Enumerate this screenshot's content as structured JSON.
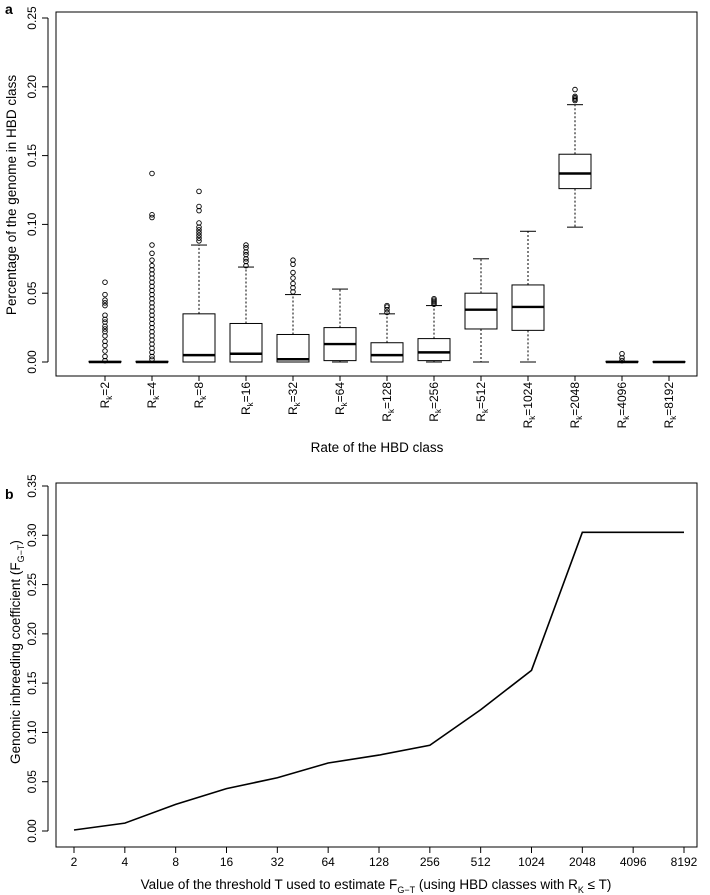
{
  "panels": [
    {
      "letter": "a"
    },
    {
      "letter": "b"
    }
  ],
  "colors": {
    "stroke": "#000000",
    "background": "#ffffff"
  },
  "chart_data": [
    {
      "type": "boxplot",
      "panel": "a",
      "title": "",
      "xlabel": "Rate of the HBD class",
      "ylabel": "Percentage of the genome in HBD class",
      "ylim": [
        0,
        0.25
      ],
      "yticks": [
        "0.00",
        "0.05",
        "0.10",
        "0.15",
        "0.20",
        "0.25"
      ],
      "categories": [
        {
          "sub": "k",
          "rate": "2"
        },
        {
          "sub": "k",
          "rate": "4"
        },
        {
          "sub": "k",
          "rate": "8"
        },
        {
          "sub": "k",
          "rate": "16"
        },
        {
          "sub": "k",
          "rate": "32"
        },
        {
          "sub": "k",
          "rate": "64"
        },
        {
          "sub": "k",
          "rate": "128"
        },
        {
          "sub": "k",
          "rate": "256"
        },
        {
          "sub": "k",
          "rate": "512"
        },
        {
          "sub": "k",
          "rate": "1024"
        },
        {
          "sub": "k",
          "rate": "2048"
        },
        {
          "sub": "k",
          "rate": "4096"
        },
        {
          "sub": "k",
          "rate": "8192"
        }
      ],
      "boxes": [
        {
          "q1": 0,
          "median": 0,
          "q3": 0.0005,
          "whisker_low": 0,
          "whisker_high": 0.0005,
          "outliers": [
            0.058,
            0.049,
            0.045,
            0.043,
            0.041,
            0.034,
            0.031,
            0.029,
            0.026,
            0.024,
            0.022,
            0.019,
            0.015,
            0.012,
            0.008,
            0.004,
            0.001
          ]
        },
        {
          "q1": 0,
          "median": 0,
          "q3": 0.0005,
          "whisker_low": 0,
          "whisker_high": 0.0005,
          "outliers": [
            0.137,
            0.107,
            0.105,
            0.085,
            0.079,
            0.074,
            0.07,
            0.067,
            0.064,
            0.061,
            0.058,
            0.055,
            0.052,
            0.049,
            0.046,
            0.043,
            0.04,
            0.037,
            0.034,
            0.031,
            0.028,
            0.025,
            0.022,
            0.019,
            0.016,
            0.013,
            0.01,
            0.007,
            0.004,
            0.002
          ]
        },
        {
          "q1": 0,
          "median": 0.005,
          "q3": 0.035,
          "whisker_low": 0,
          "whisker_high": 0.085,
          "outliers": [
            0.124,
            0.113,
            0.11,
            0.101,
            0.098,
            0.096,
            0.094,
            0.092,
            0.09,
            0.088
          ]
        },
        {
          "q1": 0,
          "median": 0.006,
          "q3": 0.028,
          "whisker_low": 0,
          "whisker_high": 0.069,
          "outliers": [
            0.085,
            0.083,
            0.08,
            0.078,
            0.075,
            0.073,
            0.07
          ]
        },
        {
          "q1": 0,
          "median": 0.002,
          "q3": 0.02,
          "whisker_low": 0,
          "whisker_high": 0.049,
          "outliers": [
            0.074,
            0.071,
            0.065,
            0.061,
            0.057,
            0.054,
            0.051
          ]
        },
        {
          "q1": 0.001,
          "median": 0.013,
          "q3": 0.025,
          "whisker_low": 0,
          "whisker_high": 0.053,
          "outliers": []
        },
        {
          "q1": 0,
          "median": 0.005,
          "q3": 0.014,
          "whisker_low": 0,
          "whisker_high": 0.035,
          "outliers": [
            0.041,
            0.04,
            0.038,
            0.036
          ]
        },
        {
          "q1": 0.001,
          "median": 0.007,
          "q3": 0.017,
          "whisker_low": 0,
          "whisker_high": 0.041,
          "outliers": [
            0.046,
            0.045,
            0.044,
            0.043,
            0.042
          ]
        },
        {
          "q1": 0.024,
          "median": 0.038,
          "q3": 0.05,
          "whisker_low": 0,
          "whisker_high": 0.075,
          "outliers": []
        },
        {
          "q1": 0.023,
          "median": 0.04,
          "q3": 0.056,
          "whisker_low": 0,
          "whisker_high": 0.095,
          "outliers": []
        },
        {
          "q1": 0.126,
          "median": 0.137,
          "q3": 0.151,
          "whisker_low": 0.098,
          "whisker_high": 0.187,
          "outliers": [
            0.198,
            0.193,
            0.192,
            0.191,
            0.19
          ]
        },
        {
          "q1": 0,
          "median": 0,
          "q3": 0.0005,
          "whisker_low": 0,
          "whisker_high": 0.0005,
          "outliers": [
            0.006,
            0.003,
            0.001
          ]
        },
        {
          "q1": 0,
          "median": 0,
          "q3": 0.0003,
          "whisker_low": 0,
          "whisker_high": 0.0003,
          "outliers": []
        }
      ]
    },
    {
      "type": "line",
      "panel": "b",
      "title": "",
      "xlabel": "Value of the threshold T used to estimate F",
      "xlabel_sub": "G−T",
      "xlabel_mid": " (using HBD classes with R",
      "xlabel_sub2": "K",
      "xlabel_end": " ≤  T)",
      "ylabel": "Genomic inbreeding coefficient (F",
      "ylabel_sub": "G−T",
      "ylabel_end": ")",
      "ylim": [
        0,
        0.35
      ],
      "yticks": [
        "0.00",
        "0.05",
        "0.10",
        "0.15",
        "0.20",
        "0.25",
        "0.30",
        "0.35"
      ],
      "categories": [
        "2",
        "4",
        "8",
        "16",
        "32",
        "64",
        "128",
        "256",
        "512",
        "1024",
        "2048",
        "4096",
        "8192"
      ],
      "values": [
        0.001,
        0.008,
        0.027,
        0.043,
        0.054,
        0.069,
        0.077,
        0.087,
        0.123,
        0.163,
        0.303,
        0.303,
        0.303
      ]
    }
  ]
}
